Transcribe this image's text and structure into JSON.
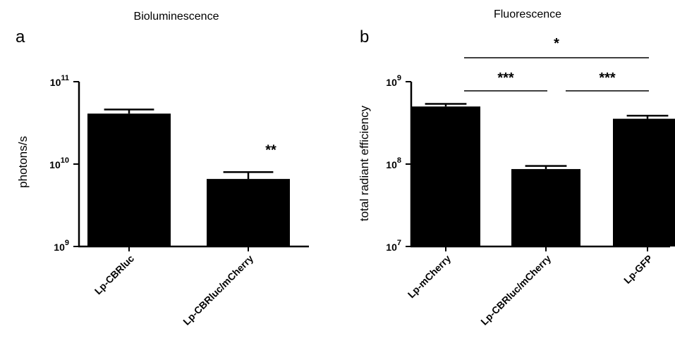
{
  "chart_data": [
    {
      "type": "bar",
      "panel": "a",
      "title": "Bioluminescence",
      "ylabel": "photons/s",
      "yscale": "log",
      "ylim": [
        1000000000,
        100000000000
      ],
      "yticks": [
        {
          "value": 1000000000,
          "base": "10",
          "exp": "9"
        },
        {
          "value": 10000000000,
          "base": "10",
          "exp": "10"
        },
        {
          "value": 100000000000,
          "base": "10",
          "exp": "11"
        }
      ],
      "categories": [
        "Lp-CBRluc",
        "Lp-CBRluc/mCherry"
      ],
      "values": [
        41000000000,
        6600000000
      ],
      "errors": [
        5000000000,
        1400000000
      ],
      "bar_color": "#000000",
      "annotations": [
        {
          "type": "star",
          "text": "**",
          "category": 1
        }
      ]
    },
    {
      "type": "bar",
      "panel": "b",
      "title": "Fluorescence",
      "ylabel": "total radiant efficiency",
      "yscale": "log",
      "ylim": [
        10000000,
        1000000000
      ],
      "yticks": [
        {
          "value": 10000000,
          "base": "10",
          "exp": "7"
        },
        {
          "value": 100000000,
          "base": "10",
          "exp": "8"
        },
        {
          "value": 1000000000,
          "base": "10",
          "exp": "9"
        }
      ],
      "categories": [
        "Lp-mCherry",
        "Lp-CBRluc/mCherry",
        "Lp-GFP"
      ],
      "values": [
        500000000,
        87000000,
        355000000
      ],
      "errors": [
        38000000,
        8000000,
        32000000
      ],
      "bar_color": "#000000",
      "annotations": [
        {
          "type": "bracket",
          "text": "***",
          "from": 0,
          "to": 1,
          "level": 1
        },
        {
          "type": "bracket",
          "text": "***",
          "from": 1,
          "to": 2,
          "level": 1
        },
        {
          "type": "bracket",
          "text": "*",
          "from": 0,
          "to": 2,
          "level": 2
        }
      ]
    }
  ]
}
